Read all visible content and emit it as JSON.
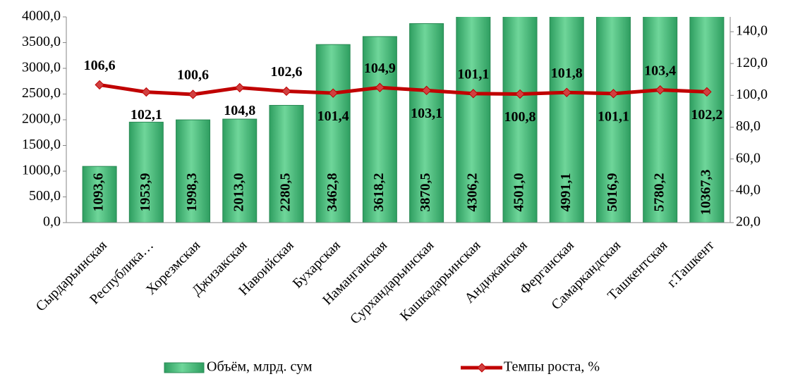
{
  "chart_data": {
    "type": "bar-line",
    "categories": [
      "Сырдарьинская",
      "Республика…",
      "Хорезмская",
      "Джизакская",
      "Навоийская",
      "Бухарская",
      "Наманганская",
      "Сурхандарьинская",
      "Кашкадарьинская",
      "Андижанская",
      "Ферганская",
      "Самаркандская",
      "Ташкентская",
      "г.Ташкент"
    ],
    "series": [
      {
        "name": "Объём, млрд. сум",
        "type": "bar",
        "color": "#3cb878",
        "values": [
          1093.6,
          1953.9,
          1998.3,
          2013.0,
          2280.5,
          3462.8,
          3618.2,
          3870.5,
          4306.2,
          4501.0,
          4991.1,
          5016.9,
          5780.2,
          10367.3
        ],
        "value_labels": [
          "1093,6",
          "1953,9",
          "1998,3",
          "2013,0",
          "2280,5",
          "3462,8",
          "3618,2",
          "3870,5",
          "4306,2",
          "4501,0",
          "4991,1",
          "5016,9",
          "5780,2",
          "10367,3"
        ]
      },
      {
        "name": "Темпы роста, %",
        "type": "line",
        "axis": "y2",
        "color": "#c00000",
        "values": [
          106.6,
          102.1,
          100.6,
          104.8,
          102.6,
          101.4,
          104.9,
          103.1,
          101.1,
          100.8,
          101.8,
          101.1,
          103.4,
          102.2
        ],
        "value_labels": [
          "106,6",
          "102,1",
          "100,6",
          "104,8",
          "102,6",
          "101,4",
          "104,9",
          "103,1",
          "101,1",
          "100,8",
          "101,8",
          "101,1",
          "103,4",
          "102,2"
        ]
      }
    ],
    "ylim": [
      0,
      4000
    ],
    "yticks": [
      {
        "value": 0,
        "label": "0,0"
      },
      {
        "value": 500,
        "label": "500,0"
      },
      {
        "value": 1000,
        "label": "1000,0"
      },
      {
        "value": 1500,
        "label": "1500,0"
      },
      {
        "value": 2000,
        "label": "2000,0"
      },
      {
        "value": 2500,
        "label": "2500,0"
      },
      {
        "value": 3000,
        "label": "3000,0"
      },
      {
        "value": 3500,
        "label": "3500,0"
      },
      {
        "value": 4000,
        "label": "4000,0"
      }
    ],
    "y2lim": [
      20,
      149.3
    ],
    "y2ticks": [
      {
        "value": 20,
        "label": "20,0"
      },
      {
        "value": 40,
        "label": "40,0"
      },
      {
        "value": 60,
        "label": "60,0"
      },
      {
        "value": 80,
        "label": "80,0"
      },
      {
        "value": 100,
        "label": "100,0"
      },
      {
        "value": 120,
        "label": "120,0"
      },
      {
        "value": 140,
        "label": "140,0"
      }
    ],
    "legend": "bottom"
  }
}
